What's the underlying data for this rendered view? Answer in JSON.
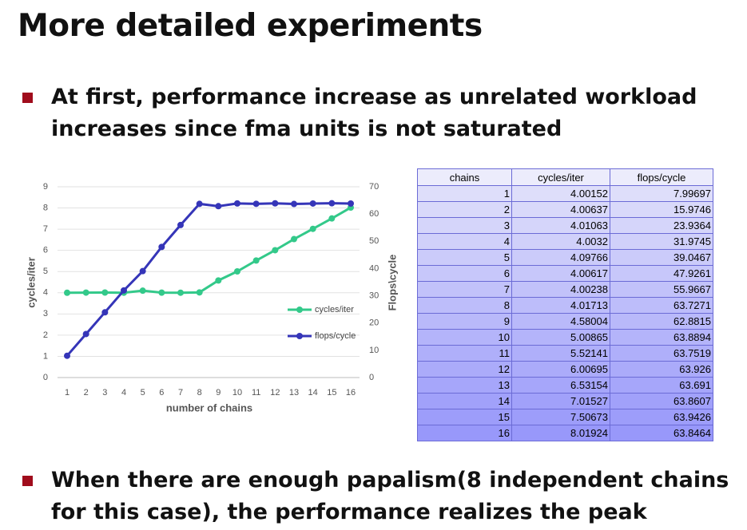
{
  "title": "More detailed experiments",
  "bullets": [
    {
      "lines": [
        "At first, performance increase as unrelated workload",
        "increases since fma units is not saturated"
      ]
    },
    {
      "lines": [
        "When there are enough papalism(8 independent chains",
        "for this case), the performance realizes the peak"
      ]
    }
  ],
  "table": {
    "header": [
      "chains",
      "cycles/iter",
      "flops/cycle"
    ]
  },
  "chart_data": {
    "type": "line",
    "x_label": "number of chains",
    "y_label": "cycles/iter",
    "y2_label": "Flops\\cycle",
    "categories": [
      "1",
      "2",
      "3",
      "4",
      "5",
      "6",
      "7",
      "8",
      "9",
      "10",
      "11",
      "12",
      "13",
      "14",
      "15",
      "16"
    ],
    "ylim": [
      0,
      9
    ],
    "yticks": [
      0,
      1,
      2,
      3,
      4,
      5,
      6,
      7,
      8,
      9
    ],
    "y2lim": [
      0,
      70
    ],
    "y2ticks": [
      0,
      10,
      20,
      30,
      40,
      50,
      60,
      70
    ],
    "grid": true,
    "legend": "right",
    "series": [
      {
        "name": "cycles/iter",
        "color": "#33c98a",
        "values": [
          4.00152,
          4.00637,
          4.01063,
          4.0032,
          4.09766,
          4.00617,
          4.00238,
          4.01713,
          4.58004,
          5.00865,
          5.52141,
          6.00695,
          6.53154,
          7.01527,
          7.50673,
          8.01924
        ]
      },
      {
        "name": "flops/cycle",
        "color": "#3535b8",
        "axis": "y2",
        "values": [
          7.99697,
          15.9746,
          23.9364,
          31.9745,
          39.0467,
          47.9261,
          55.9667,
          63.7271,
          62.8815,
          63.8894,
          63.7519,
          63.926,
          63.691,
          63.8607,
          63.9426,
          63.8464
        ]
      }
    ]
  }
}
